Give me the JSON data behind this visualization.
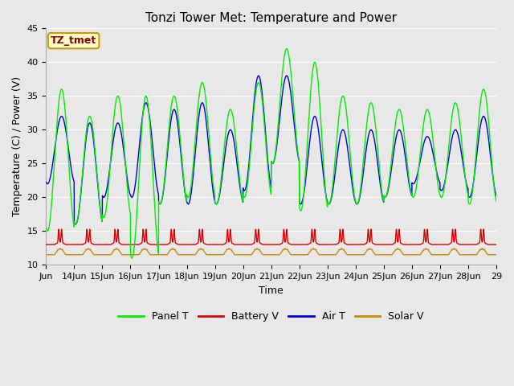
{
  "title": "Tonzi Tower Met: Temperature and Power",
  "xlabel": "Time",
  "ylabel": "Temperature (C) / Power (V)",
  "ylim": [
    10,
    45
  ],
  "yticks": [
    10,
    15,
    20,
    25,
    30,
    35,
    40,
    45
  ],
  "x_labels": [
    "Jun",
    "14Jun",
    "15Jun",
    "16Jun",
    "17Jun",
    "18Jun",
    "19Jun",
    "20Jun",
    "21Jun",
    "22Jun",
    "23Jun",
    "24Jun",
    "25Jun",
    "26Jun",
    "27Jun",
    "28Jun",
    "29"
  ],
  "annotation": "TZ_tmet",
  "annotation_color": "#8b0000",
  "annotation_bg": "#ffffcc",
  "annotation_border": "#cc9900",
  "colors": {
    "panel_t": "#00ee00",
    "battery_v": "#dd0000",
    "air_t": "#0000dd",
    "solar_v": "#cc8800"
  },
  "legend_labels": [
    "Panel T",
    "Battery V",
    "Air T",
    "Solar V"
  ],
  "fig_bg": "#e8e8e8",
  "plot_bg": "#e8e8e8",
  "grid_color": "#ffffff",
  "title_fontsize": 11,
  "axis_fontsize": 9,
  "tick_fontsize": 8,
  "linewidth": 1.0,
  "n_days": 16,
  "panel_peaks": [
    36,
    32,
    35,
    35,
    35,
    37,
    33,
    37,
    42,
    40,
    35,
    34,
    33,
    33,
    34,
    36
  ],
  "panel_troughs": [
    15,
    16,
    17,
    11,
    19,
    20,
    19,
    20,
    25,
    18,
    19,
    19,
    20,
    20,
    20,
    19
  ],
  "air_peaks": [
    32,
    31,
    31,
    34,
    33,
    34,
    30,
    38,
    38,
    32,
    30,
    30,
    30,
    29,
    30,
    32
  ],
  "air_troughs": [
    22,
    16,
    20,
    20,
    19,
    19,
    19,
    21,
    25,
    19,
    19,
    19,
    20,
    22,
    21,
    20
  ],
  "battery_peak": 15.0,
  "battery_base": 13.0,
  "solar_peak": 12.3,
  "solar_base": 11.5
}
